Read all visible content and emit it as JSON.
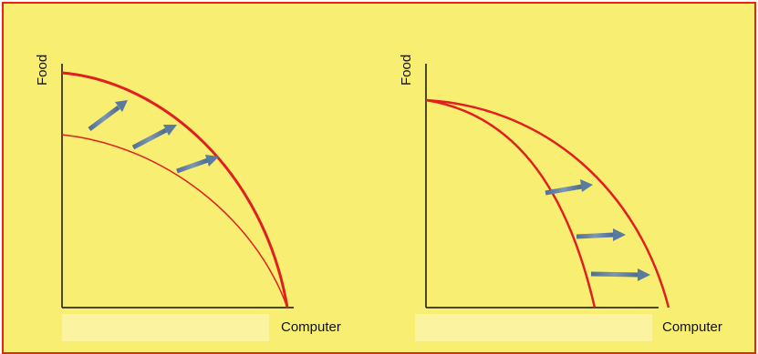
{
  "colors": {
    "background": "#f7ee72",
    "border": "#e8231f",
    "curve": "#e01f1f",
    "arrow": "#5a7aa0",
    "axis": "#111111"
  },
  "panels": [
    {
      "y_label": "Food",
      "x_label": "Computer",
      "shift": "parallel outward shift of production possibilities frontier"
    },
    {
      "y_label": "Food",
      "x_label": "Computer",
      "shift": "outward shift along computer axis only"
    }
  ]
}
